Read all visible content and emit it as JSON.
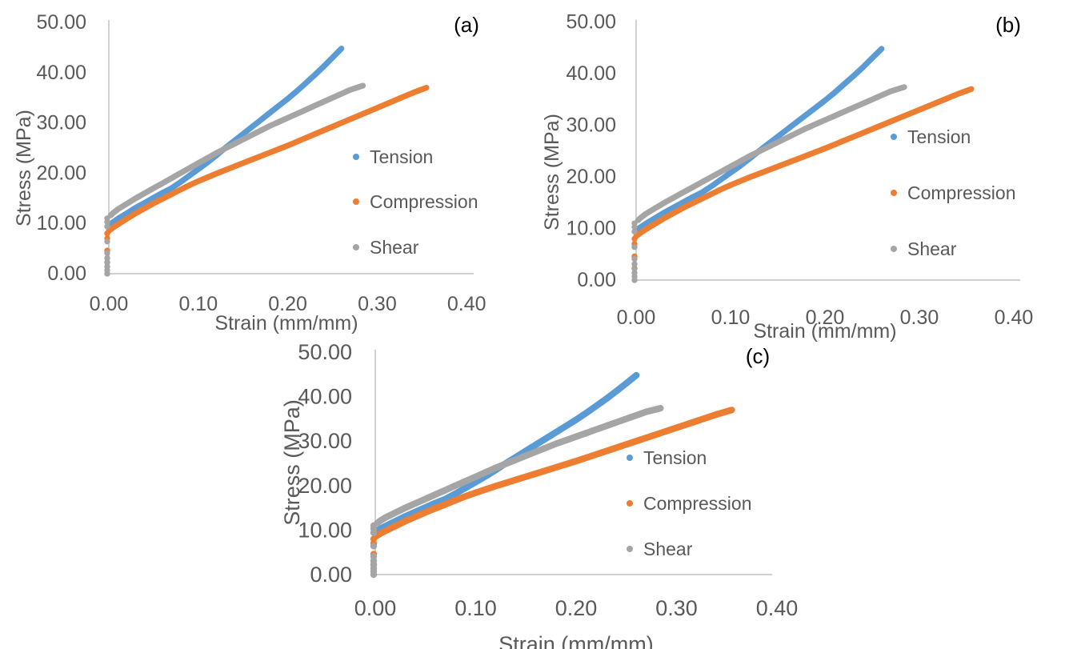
{
  "figure": {
    "background": "#FFFFFF",
    "description": "Three-panel stress-strain scatter figure"
  },
  "chart_data": {
    "type": "scatter",
    "panels": [
      {
        "label": "(a)"
      },
      {
        "label": "(b)"
      },
      {
        "label": "(c)"
      }
    ],
    "xlabel": "Strain (mm/mm)",
    "ylabel": "Stress (MPa)",
    "xlim": [
      0.0,
      0.4
    ],
    "ylim": [
      0.0,
      50.0
    ],
    "x_tick_labels": [
      "0.00",
      "0.10",
      "0.20",
      "0.30",
      "0.40"
    ],
    "x_tick_values": [
      0.0,
      0.1,
      0.2,
      0.3,
      0.4
    ],
    "y_tick_labels": [
      "0.00",
      "10.00",
      "20.00",
      "30.00",
      "40.00",
      "50.00"
    ],
    "y_tick_values": [
      0,
      10,
      20,
      30,
      40,
      50
    ],
    "grid": false,
    "legend": {
      "position": "inside-right",
      "entries": [
        "Tension",
        "Compression",
        "Shear"
      ]
    },
    "colors": {
      "tension": "#5B9BD5",
      "compression": "#ED7D31",
      "shear": "#A5A5A5",
      "axis_text": "#595959",
      "axis_line": "#BFBFBF",
      "panel_label": "#000000"
    },
    "series": [
      {
        "name": "Tension",
        "color_key": "tension",
        "zero_strain_points": [],
        "points": [
          [
            0.0,
            9.7
          ],
          [
            0.005,
            10.3
          ],
          [
            0.01,
            10.9
          ],
          [
            0.02,
            12.0
          ],
          [
            0.03,
            13.1
          ],
          [
            0.04,
            14.1
          ],
          [
            0.05,
            15.1
          ],
          [
            0.06,
            16.1
          ],
          [
            0.07,
            17.0
          ],
          [
            0.08,
            18.2
          ],
          [
            0.09,
            19.5
          ],
          [
            0.1,
            20.8
          ],
          [
            0.11,
            22.1
          ],
          [
            0.12,
            23.5
          ],
          [
            0.13,
            25.0
          ],
          [
            0.14,
            26.4
          ],
          [
            0.15,
            27.8
          ],
          [
            0.16,
            29.2
          ],
          [
            0.17,
            30.6
          ],
          [
            0.18,
            32.0
          ],
          [
            0.19,
            33.4
          ],
          [
            0.2,
            34.8
          ],
          [
            0.21,
            36.3
          ],
          [
            0.22,
            37.9
          ],
          [
            0.23,
            39.5
          ],
          [
            0.24,
            41.2
          ],
          [
            0.25,
            43.0
          ],
          [
            0.26,
            44.8
          ]
        ]
      },
      {
        "name": "Compression",
        "color_key": "compression",
        "zero_strain_points": [
          2.3,
          4.6,
          7.0,
          8.0
        ],
        "points": [
          [
            0.0,
            8.5
          ],
          [
            0.005,
            9.2
          ],
          [
            0.01,
            9.8
          ],
          [
            0.02,
            10.9
          ],
          [
            0.03,
            12.0
          ],
          [
            0.04,
            13.0
          ],
          [
            0.05,
            14.0
          ],
          [
            0.06,
            14.9
          ],
          [
            0.07,
            15.8
          ],
          [
            0.08,
            16.7
          ],
          [
            0.09,
            17.6
          ],
          [
            0.1,
            18.4
          ],
          [
            0.12,
            19.9
          ],
          [
            0.14,
            21.3
          ],
          [
            0.16,
            22.7
          ],
          [
            0.18,
            24.1
          ],
          [
            0.2,
            25.5
          ],
          [
            0.22,
            27.0
          ],
          [
            0.24,
            28.5
          ],
          [
            0.26,
            30.0
          ],
          [
            0.28,
            31.5
          ],
          [
            0.3,
            33.0
          ],
          [
            0.32,
            34.5
          ],
          [
            0.34,
            36.0
          ],
          [
            0.355,
            37.0
          ]
        ]
      },
      {
        "name": "Shear",
        "color_key": "shear",
        "zero_strain_points": [
          0.0,
          0.7,
          1.4,
          2.2,
          3.1,
          4.1,
          6.4,
          9.4,
          10.3,
          11.0
        ],
        "points": [
          [
            0.002,
            11.6
          ],
          [
            0.005,
            12.1
          ],
          [
            0.01,
            12.8
          ],
          [
            0.02,
            13.9
          ],
          [
            0.03,
            15.0
          ],
          [
            0.04,
            16.0
          ],
          [
            0.05,
            17.0
          ],
          [
            0.06,
            18.0
          ],
          [
            0.07,
            19.0
          ],
          [
            0.08,
            20.0
          ],
          [
            0.09,
            21.0
          ],
          [
            0.1,
            22.0
          ],
          [
            0.11,
            23.0
          ],
          [
            0.12,
            24.0
          ],
          [
            0.13,
            24.9
          ],
          [
            0.14,
            25.8
          ],
          [
            0.15,
            26.7
          ],
          [
            0.16,
            27.6
          ],
          [
            0.17,
            28.5
          ],
          [
            0.18,
            29.4
          ],
          [
            0.19,
            30.2
          ],
          [
            0.2,
            31.0
          ],
          [
            0.21,
            31.8
          ],
          [
            0.22,
            32.6
          ],
          [
            0.23,
            33.4
          ],
          [
            0.24,
            34.2
          ],
          [
            0.25,
            35.0
          ],
          [
            0.26,
            35.8
          ],
          [
            0.27,
            36.6
          ],
          [
            0.284,
            37.4
          ]
        ]
      }
    ]
  }
}
